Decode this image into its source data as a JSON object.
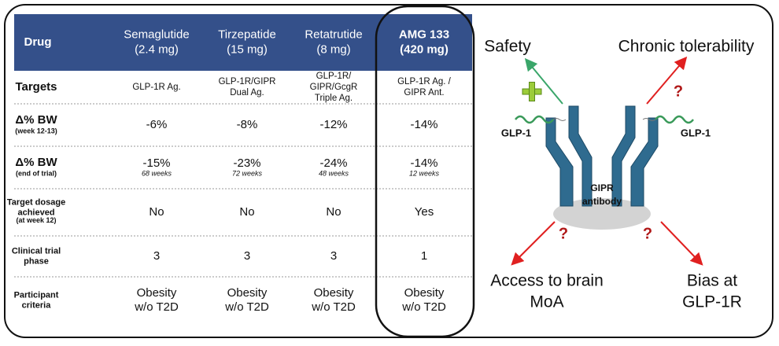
{
  "table": {
    "header": [
      [
        "Drug"
      ],
      [
        "Semaglutide",
        "(2.4 mg)"
      ],
      [
        "Tirzepatide",
        "(15 mg)"
      ],
      [
        "Retatrutide",
        "(8 mg)"
      ],
      [
        "AMG 133",
        "(420 mg)"
      ]
    ],
    "rows": [
      {
        "label": [
          "Targets"
        ],
        "cells": [
          [
            "GLP-1R Ag."
          ],
          [
            "GLP-1R/GIPR",
            "Dual Ag."
          ],
          [
            "GLP-1R/",
            "GIPR/GcgR",
            "Triple Ag."
          ],
          [
            "GLP-1R Ag. /",
            "GIPR Ant."
          ]
        ]
      },
      {
        "label": [
          "Δ% BW"
        ],
        "sublabel": "(week 12-13)",
        "cells": [
          [
            "-6%"
          ],
          [
            "-8%"
          ],
          [
            "-12%"
          ],
          [
            "-14%"
          ]
        ]
      },
      {
        "label": [
          "Δ% BW"
        ],
        "sublabel": "(end of trial)",
        "cells": [
          [
            "-15%"
          ],
          [
            "-23%"
          ],
          [
            "-24%"
          ],
          [
            "-14%"
          ]
        ],
        "notes": [
          "68 weeks",
          "72 weeks",
          "48 weeks",
          "12 weeks"
        ]
      },
      {
        "label": [
          "Target dosage",
          "achieved"
        ],
        "sublabel": "(at week 12)",
        "cells": [
          [
            "No"
          ],
          [
            "No"
          ],
          [
            "No"
          ],
          [
            "Yes"
          ]
        ]
      },
      {
        "label": [
          "Clinical trial",
          "phase"
        ],
        "cells": [
          [
            "3"
          ],
          [
            "3"
          ],
          [
            "3"
          ],
          [
            "1"
          ]
        ]
      },
      {
        "label": [
          "Participant",
          "criteria"
        ],
        "cells": [
          [
            "Obesity",
            "w/o T2D"
          ],
          [
            "Obesity",
            "w/o T2D"
          ],
          [
            "Obesity",
            "w/o T2D"
          ],
          [
            "Obesity",
            "w/o T2D"
          ]
        ]
      }
    ]
  },
  "diagram": {
    "safety": "Safety",
    "tolerability": "Chronic tolerability",
    "brain": [
      "Access to brain",
      "MoA"
    ],
    "bias": [
      "Bias at",
      "GLP-1R"
    ],
    "ligand": "GLP-1",
    "antibody": [
      "GIPR",
      "antibody"
    ],
    "unknown": "?"
  }
}
